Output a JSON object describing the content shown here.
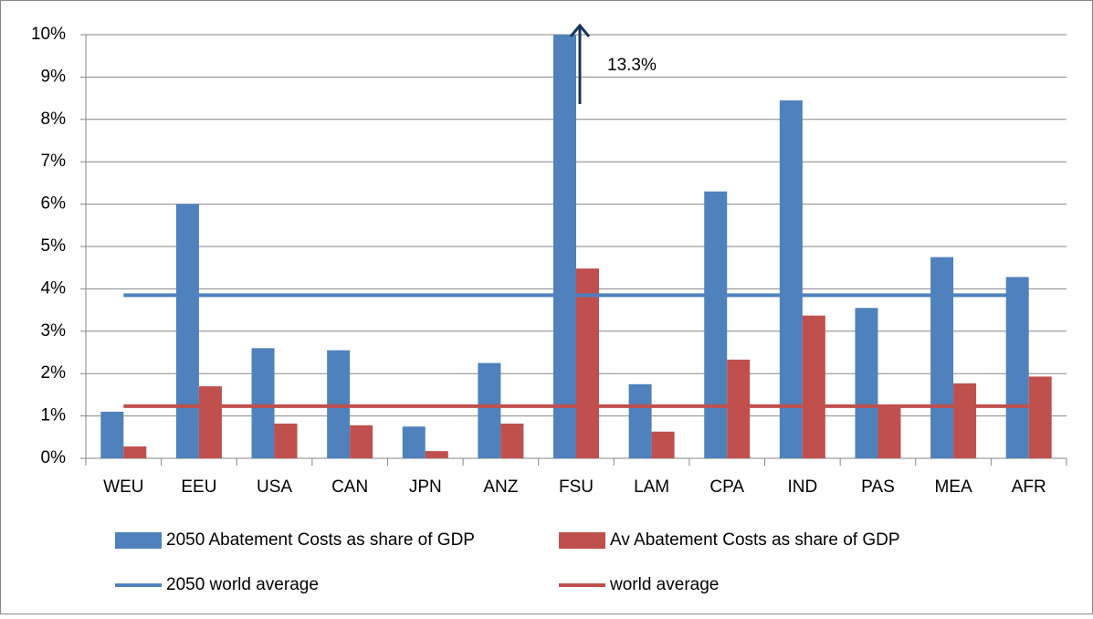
{
  "chart_data": {
    "type": "bar",
    "categories": [
      "WEU",
      "EEU",
      "USA",
      "CAN",
      "JPN",
      "ANZ",
      "FSU",
      "LAM",
      "CPA",
      "IND",
      "PAS",
      "MEA",
      "AFR"
    ],
    "series": [
      {
        "name": "2050 Abatement Costs as share of GDP",
        "color": "#4f81bd",
        "values": [
          1.1,
          6.0,
          2.6,
          2.55,
          0.75,
          2.25,
          13.3,
          1.75,
          6.3,
          8.45,
          3.55,
          4.75,
          4.28
        ],
        "value_labels": [
          null,
          null,
          null,
          null,
          null,
          null,
          "13.3%",
          null,
          null,
          null,
          null,
          null,
          null
        ]
      },
      {
        "name": "Av Abatement Costs as share of GDP",
        "color": "#c0504d",
        "values": [
          0.28,
          1.7,
          0.82,
          0.78,
          0.17,
          0.82,
          4.48,
          0.63,
          2.33,
          3.37,
          1.25,
          1.77,
          1.93
        ]
      },
      {
        "name": "2050 world average",
        "color": "#4f81bd",
        "kind": "line",
        "value": 3.85
      },
      {
        "name": "world average",
        "color": "#c0504d",
        "kind": "line",
        "value": 1.23
      }
    ],
    "ylim": [
      0,
      10
    ],
    "yticks": [
      {
        "value": 0,
        "label": "0%"
      },
      {
        "value": 1,
        "label": "1%"
      },
      {
        "value": 2,
        "label": "2%"
      },
      {
        "value": 3,
        "label": "3%"
      },
      {
        "value": 4,
        "label": "4%"
      },
      {
        "value": 5,
        "label": "5%"
      },
      {
        "value": 6,
        "label": "6%"
      },
      {
        "value": 7,
        "label": "7%"
      },
      {
        "value": 8,
        "label": "8%"
      },
      {
        "value": 9,
        "label": "9%"
      },
      {
        "value": 10,
        "label": "10%"
      }
    ],
    "grid": true
  }
}
